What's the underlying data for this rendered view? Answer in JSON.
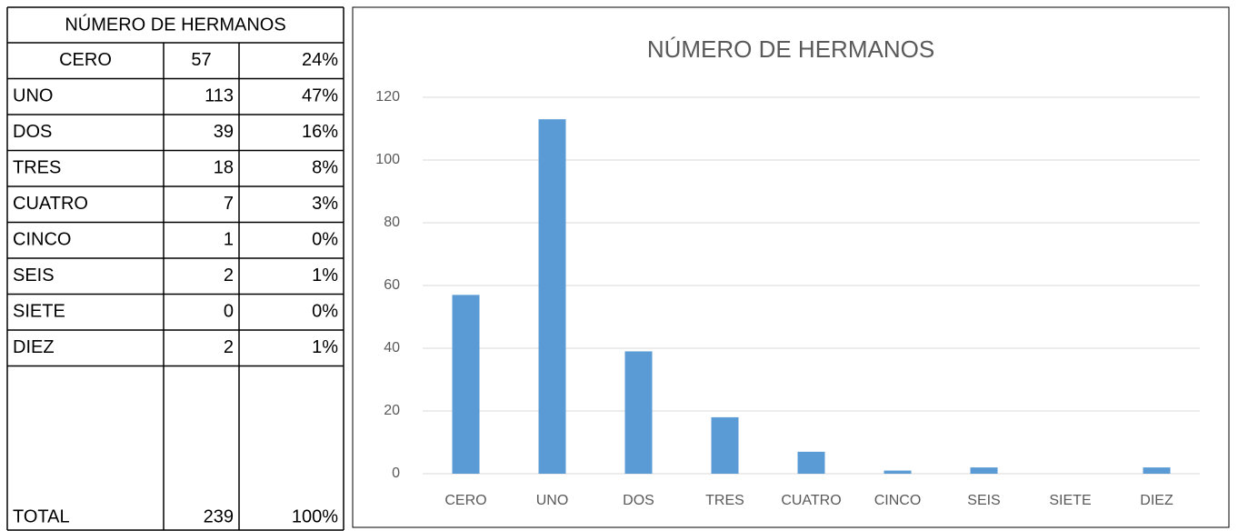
{
  "table": {
    "title": "NÚMERO DE HERMANOS",
    "rows": [
      [
        "CERO",
        57,
        "24%"
      ],
      [
        "UNO",
        113,
        "47%"
      ],
      [
        "DOS",
        39,
        "16%"
      ],
      [
        "TRES",
        18,
        "8%"
      ],
      [
        "CUATRO",
        7,
        "3%"
      ],
      [
        "CINCO",
        1,
        "0%"
      ],
      [
        "SEIS",
        2,
        "1%"
      ],
      [
        "SIETE",
        0,
        "0%"
      ],
      [
        "DIEZ",
        2,
        "1%"
      ]
    ],
    "total": [
      "TOTAL",
      239,
      "100%"
    ]
  },
  "chart_data": {
    "type": "bar",
    "title": "NÚMERO DE HERMANOS",
    "categories": [
      "CERO",
      "UNO",
      "DOS",
      "TRES",
      "CUATRO",
      "CINCO",
      "SEIS",
      "SIETE",
      "DIEZ"
    ],
    "values": [
      57,
      113,
      39,
      18,
      7,
      1,
      2,
      0,
      2
    ],
    "color": "#5b9bd5",
    "ylim": [
      0,
      120
    ],
    "yticks": [
      0,
      20,
      40,
      60,
      80,
      100,
      120
    ],
    "grid": true
  }
}
